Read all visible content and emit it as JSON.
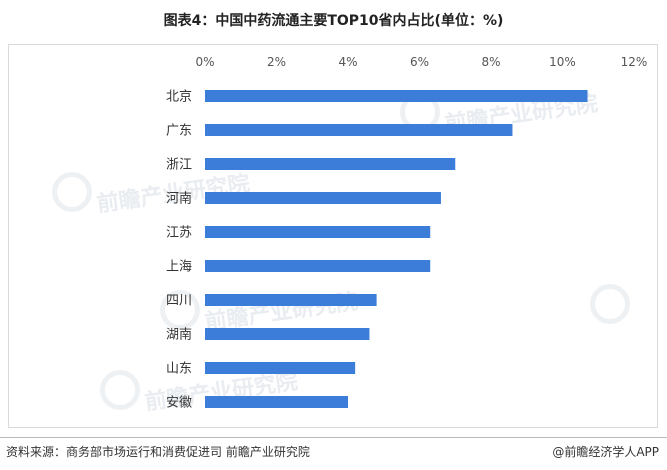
{
  "title": "图表4：中国中药流通主要TOP10省内占比(单位：%)",
  "source": "资料来源：商务部市场运行和消费促进司 前瞻产业研究院",
  "brand": "@前瞻经济学人APP",
  "watermark_text": "前瞻产业研究院",
  "bar_color": "#3b7dd8",
  "chart_data": {
    "type": "bar",
    "orientation": "horizontal",
    "title": "图表4：中国中药流通主要TOP10省内占比(单位：%)",
    "categories": [
      "北京",
      "广东",
      "浙江",
      "河南",
      "江苏",
      "上海",
      "四川",
      "湖南",
      "山东",
      "安徽"
    ],
    "values": [
      10.7,
      8.6,
      7.0,
      6.6,
      6.3,
      6.3,
      4.8,
      4.6,
      4.2,
      4.0
    ],
    "xlim": [
      0,
      12
    ],
    "xticks": [
      "0%",
      "2%",
      "4%",
      "6%",
      "8%",
      "10%",
      "12%"
    ],
    "tick_values": [
      0,
      2,
      4,
      6,
      8,
      10,
      12
    ],
    "axis_position": "top",
    "grid": false,
    "legend": "none"
  }
}
